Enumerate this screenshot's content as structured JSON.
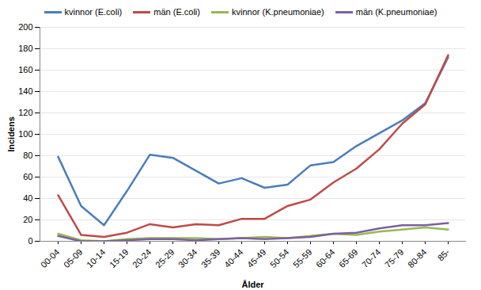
{
  "chart_data": {
    "type": "line",
    "x_label": "Ålder",
    "y_label": "Incidens",
    "categories": [
      "00-04",
      "05-09",
      "10-14",
      "15-19",
      "20-24",
      "25-29",
      "30-34",
      "35-39",
      "40-44",
      "45-49",
      "50-54",
      "55-59",
      "60-64",
      "65-69",
      "70-74",
      "75-79",
      "80-84",
      "85-"
    ],
    "series": [
      {
        "name": "kvinnor (E.coli)",
        "color": "#4a7ebb",
        "values": [
          79,
          33,
          15,
          47,
          81,
          78,
          66,
          54,
          59,
          50,
          53,
          71,
          74,
          89,
          101,
          113,
          129,
          172
        ]
      },
      {
        "name": "män (E.coli)",
        "color": "#be4b48",
        "values": [
          43,
          6,
          4,
          8,
          16,
          13,
          16,
          15,
          21,
          21,
          33,
          39,
          55,
          68,
          86,
          110,
          128,
          174
        ]
      },
      {
        "name": "kvinnor (K.pneumoniae)",
        "color": "#98b954",
        "values": [
          7,
          1,
          0,
          2,
          3,
          3,
          3,
          2,
          3,
          4,
          3,
          5,
          7,
          6,
          9,
          11,
          13,
          11
        ]
      },
      {
        "name": "män (K.pneumoniae)",
        "color": "#7d60a0",
        "values": [
          5,
          0,
          0,
          1,
          2,
          2,
          1,
          2,
          3,
          2,
          3,
          4,
          7,
          8,
          12,
          15,
          15,
          17
        ]
      }
    ],
    "ylim": [
      0,
      200
    ],
    "yticks": [
      0,
      20,
      40,
      60,
      80,
      100,
      120,
      140,
      160,
      180,
      200
    ],
    "grid": true,
    "legend": "top"
  }
}
